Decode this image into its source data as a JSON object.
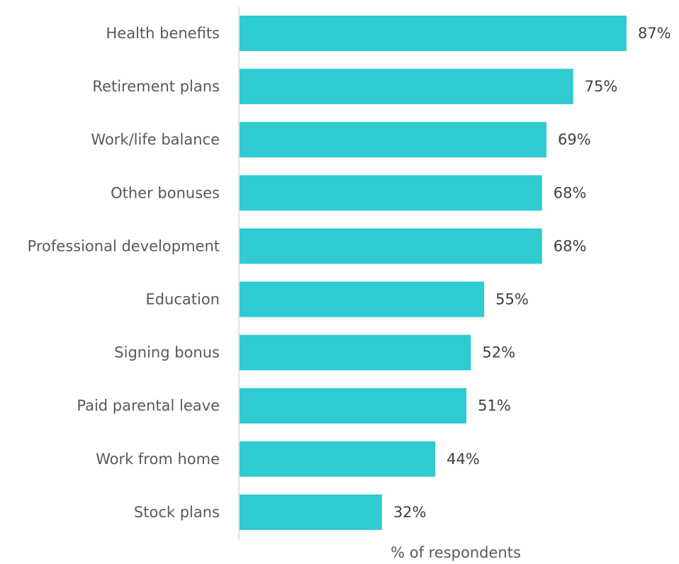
{
  "chart_data": {
    "type": "bar",
    "orientation": "horizontal",
    "categories": [
      "Health benefits",
      "Retirement plans",
      "Work/life balance",
      "Other bonuses",
      "Professional development",
      "Education",
      "Signing bonus",
      "Paid parental leave",
      "Work from home",
      "Stock plans"
    ],
    "values": [
      87,
      75,
      69,
      68,
      68,
      55,
      52,
      51,
      44,
      32
    ],
    "value_labels": [
      "87%",
      "75%",
      "69%",
      "68%",
      "68%",
      "55%",
      "52%",
      "51%",
      "44%",
      "32%"
    ],
    "xlabel": "% of respondents",
    "ylabel": "",
    "title": "",
    "xlim": [
      0,
      87
    ],
    "grid": false,
    "bar_color": "#2ECBD1",
    "axis_color": "#D9D9D9"
  }
}
